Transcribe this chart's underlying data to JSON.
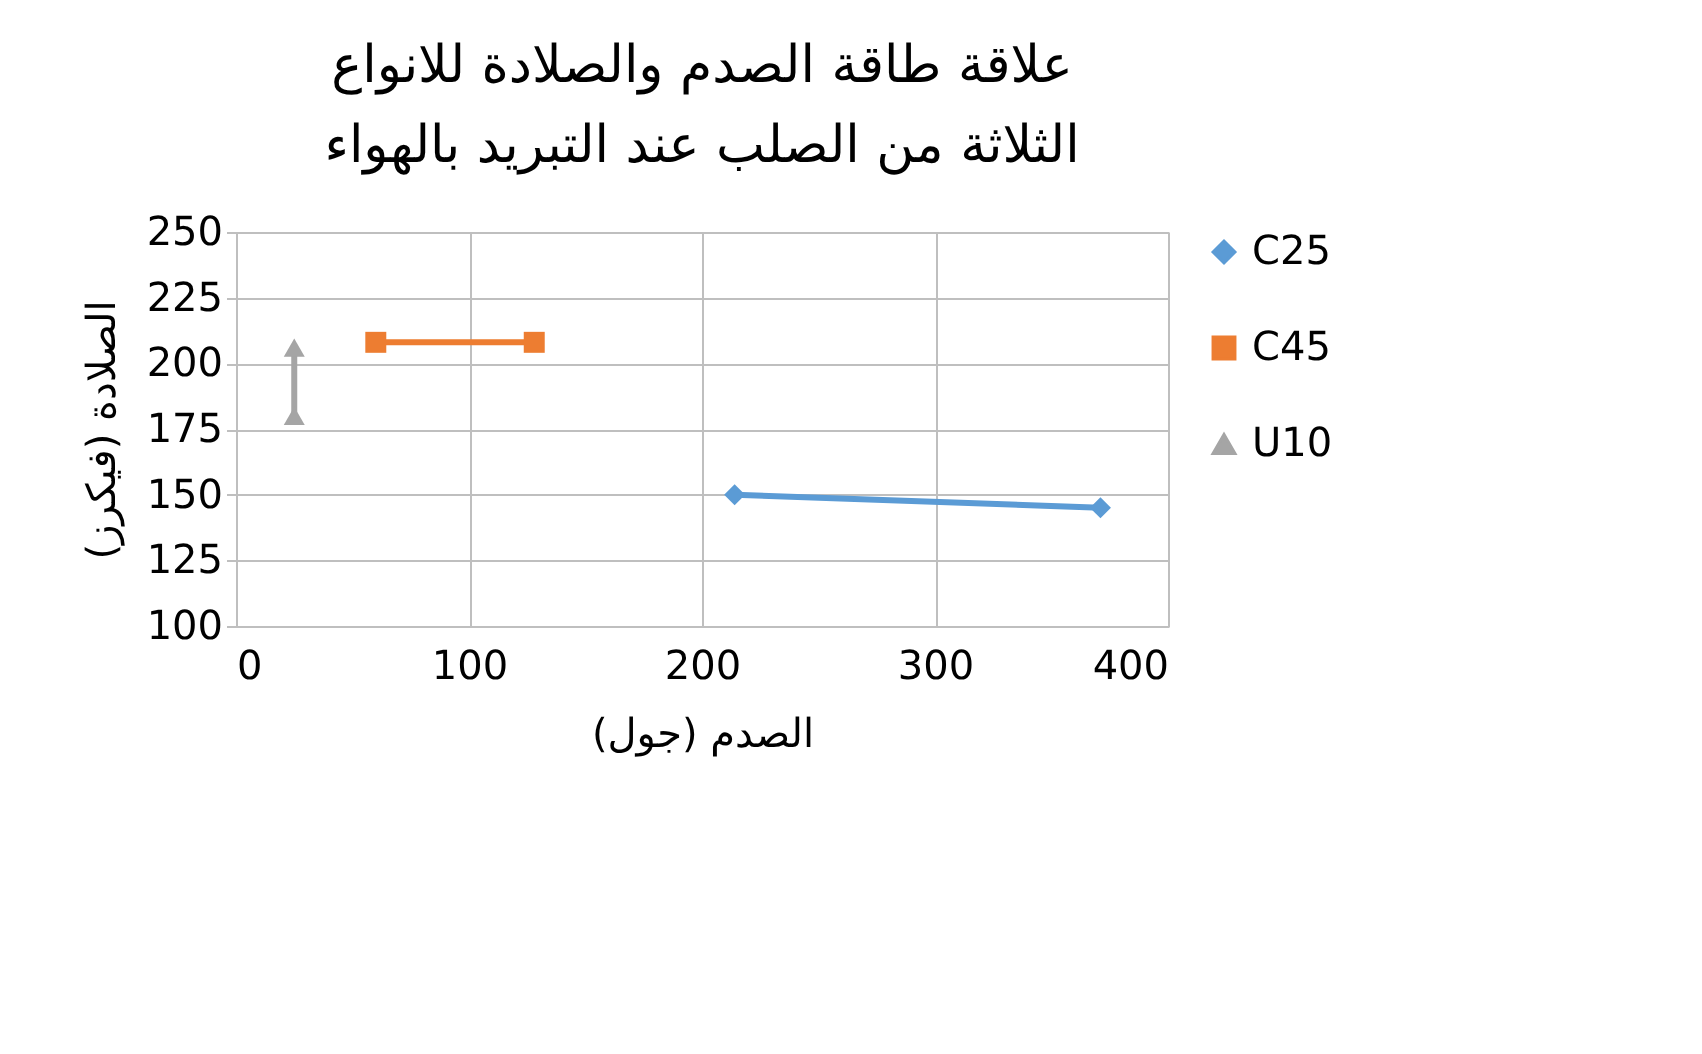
{
  "chart_data": {
    "type": "line",
    "title": "علاقة طاقة الصدم والصلادة للانواع الثلاثة من الصلب عند التبريد بالهواء",
    "xlabel": "الصدم (جول)",
    "ylabel": "الصلادة (فيكرز)",
    "series": [
      {
        "name": "C25",
        "color": "#5b9bd5",
        "marker": "diamond",
        "x": [
          214,
          371
        ],
        "values": [
          150,
          145
        ]
      },
      {
        "name": "C45",
        "color": "#ed7d31",
        "marker": "square",
        "x": [
          60,
          128
        ],
        "values": [
          208,
          208
        ]
      },
      {
        "name": "U10",
        "color": "#a5a5a5",
        "marker": "triangle",
        "x": [
          25,
          25
        ],
        "values": [
          206,
          180
        ]
      }
    ],
    "xlim": [
      0,
      400
    ],
    "xticks": [
      0,
      100,
      200,
      300,
      400
    ],
    "ylim": [
      100,
      250
    ],
    "yticks": [
      100,
      125,
      150,
      175,
      200,
      225,
      250
    ],
    "grid": true,
    "legend": "right"
  }
}
